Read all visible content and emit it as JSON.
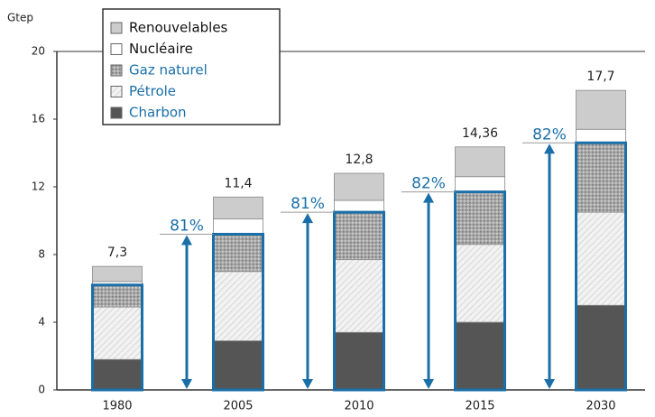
{
  "chart_data": {
    "type": "stacked_bar",
    "ylabel": "Gtep",
    "categories": [
      "1980",
      "2005",
      "2010",
      "2015",
      "2030"
    ],
    "series": [
      {
        "name": "Charbon",
        "color": "#555555",
        "legend_color": "#1a6fa8",
        "values": [
          1.8,
          2.9,
          3.4,
          4.0,
          5.0
        ]
      },
      {
        "name": "Pétrole",
        "color": "#eeeeee",
        "legend_color": "#1a6fa8",
        "values": [
          3.1,
          4.1,
          4.3,
          4.6,
          5.5
        ]
      },
      {
        "name": "Gaz naturel",
        "color": "#9a9a9a",
        "legend_color": "#1a6fa8",
        "values": [
          1.3,
          2.2,
          2.8,
          3.1,
          4.1
        ]
      },
      {
        "name": "Nucléaire",
        "color": "#ffffff",
        "legend_color": "#111111",
        "values": [
          0.2,
          0.9,
          0.7,
          0.9,
          0.8
        ]
      },
      {
        "name": "Renouvelables",
        "color": "#cccccc",
        "legend_color": "#111111",
        "values": [
          0.9,
          1.3,
          1.6,
          1.76,
          2.3
        ]
      }
    ],
    "totals": [
      7.3,
      11.4,
      12.8,
      14.36,
      17.7
    ],
    "total_labels": [
      "7,3",
      "11,4",
      "12,8",
      "14,36",
      "17,7"
    ],
    "annotations": [
      {
        "category": "2005",
        "label": "81%"
      },
      {
        "category": "2010",
        "label": "81%"
      },
      {
        "category": "2015",
        "label": "82%"
      },
      {
        "category": "2030",
        "label": "82%"
      }
    ],
    "highlight_color": "#1a6fa8",
    "ylim": [
      0,
      20
    ],
    "yticks": [
      0,
      4,
      8,
      12,
      16,
      20
    ]
  }
}
